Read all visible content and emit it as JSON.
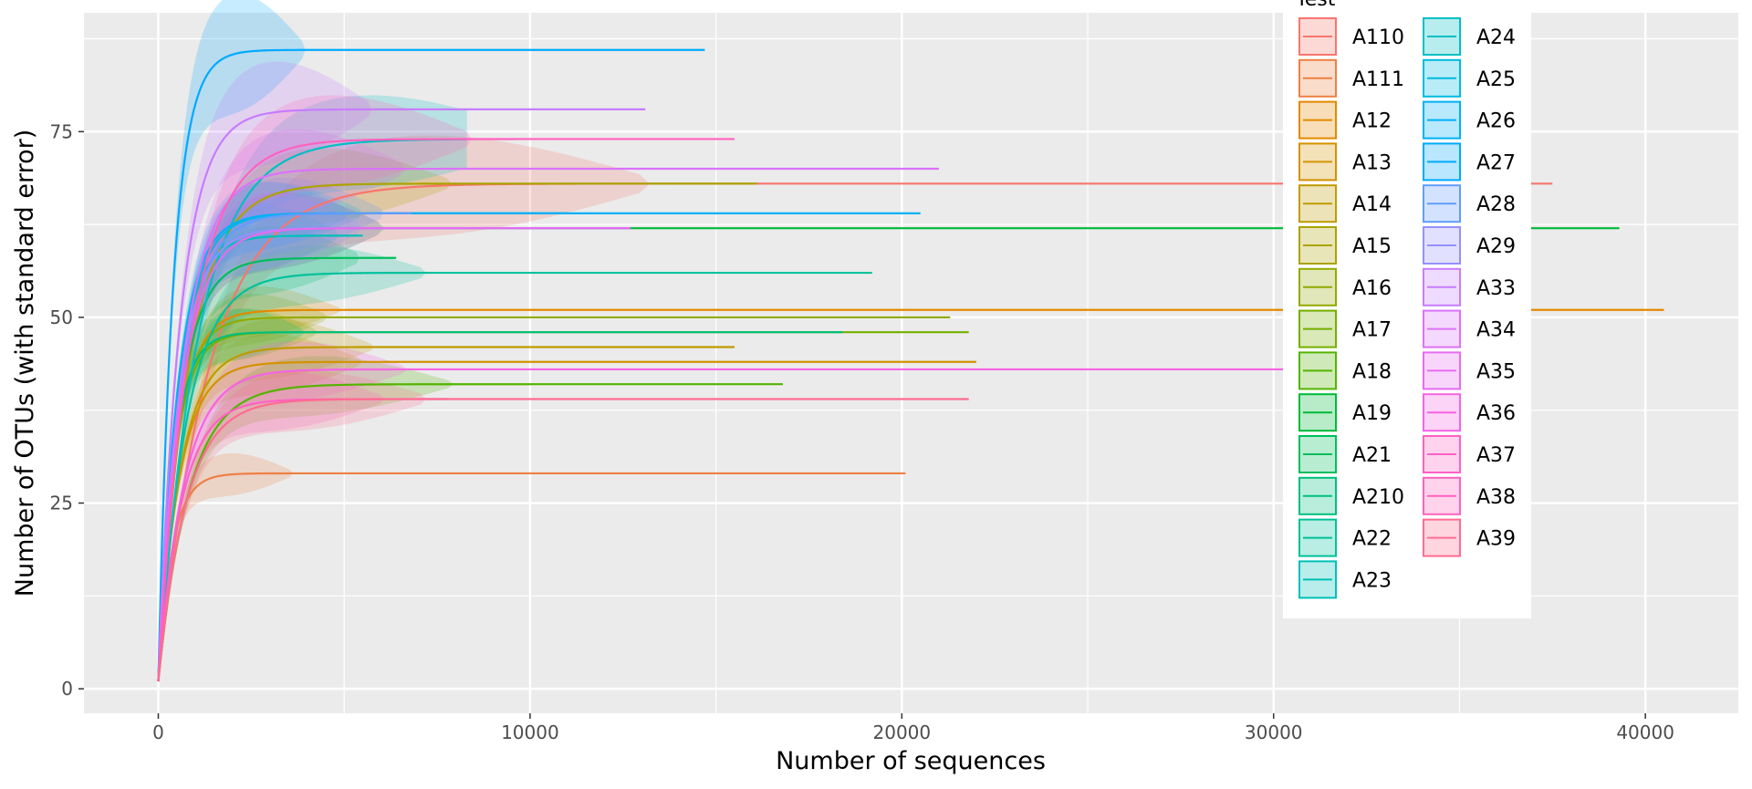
{
  "chart_data": {
    "type": "line",
    "xlabel": "Number of sequences",
    "ylabel": "Number of OTUs (with standard error)",
    "xlim": [
      -2000,
      42500
    ],
    "ylim": [
      -3.3,
      91
    ],
    "x_ticks": [
      0,
      10000,
      20000,
      30000,
      40000
    ],
    "x_tick_labels": [
      "0",
      "10000",
      "20000",
      "30000",
      "40000"
    ],
    "y_ticks": [
      0,
      25,
      50,
      75
    ],
    "y_tick_labels": [
      "0",
      "25",
      "50",
      "75"
    ],
    "grid": true,
    "legend_position": "top-right",
    "legend_title": "Test",
    "series": [
      {
        "name": "A110",
        "color": "#F8766D",
        "asymptote": 68,
        "k": 2200,
        "n_max": 37500,
        "se": 6
      },
      {
        "name": "A111",
        "color": "#EE8044",
        "asymptote": 29,
        "k": 600,
        "n_max": 20100,
        "se": 2.5
      },
      {
        "name": "A12",
        "color": "#E38900",
        "asymptote": 51,
        "k": 800,
        "n_max": 40500,
        "se": 3
      },
      {
        "name": "A13",
        "color": "#D39200",
        "asymptote": 44,
        "k": 900,
        "n_max": 22000,
        "se": 3.5
      },
      {
        "name": "A14",
        "color": "#C09B00",
        "asymptote": 46,
        "k": 950,
        "n_max": 15500,
        "se": 3.5
      },
      {
        "name": "A15",
        "color": "#ABA300",
        "asymptote": 68,
        "k": 1300,
        "n_max": 16100,
        "se": 4.5
      },
      {
        "name": "A16",
        "color": "#93AA00",
        "asymptote": 50,
        "k": 750,
        "n_max": 21300,
        "se": 3
      },
      {
        "name": "A17",
        "color": "#75AF00",
        "asymptote": 48,
        "k": 700,
        "n_max": 21800,
        "se": 3
      },
      {
        "name": "A18",
        "color": "#53B400",
        "asymptote": 41,
        "k": 1300,
        "n_max": 16800,
        "se": 3.5
      },
      {
        "name": "A19",
        "color": "#00BA38",
        "asymptote": 62,
        "k": 1000,
        "n_max": 39300,
        "se": 4.5
      },
      {
        "name": "A21",
        "color": "#00BD5C",
        "asymptote": 58,
        "k": 900,
        "n_max": 6400,
        "se": 4
      },
      {
        "name": "A210",
        "color": "#00BF7D",
        "asymptote": 48,
        "k": 650,
        "n_max": 18400,
        "se": 3
      },
      {
        "name": "A22",
        "color": "#00C19A",
        "asymptote": 56,
        "k": 1200,
        "n_max": 19200,
        "se": 3.5
      },
      {
        "name": "A23",
        "color": "#00C0B8",
        "asymptote": 61,
        "k": 800,
        "n_max": 5500,
        "se": 4
      },
      {
        "name": "A24",
        "color": "#00BFC4",
        "asymptote": 74,
        "k": 1700,
        "n_max": 8300,
        "se": 5.5
      },
      {
        "name": "A25",
        "color": "#00BAE0",
        "asymptote": 64,
        "k": 900,
        "n_max": 11000,
        "se": 4
      },
      {
        "name": "A26",
        "color": "#00B0F6",
        "asymptote": 64,
        "k": 850,
        "n_max": 20500,
        "se": 4
      },
      {
        "name": "A27",
        "color": "#00A9FF",
        "asymptote": 86,
        "k": 650,
        "n_max": 14700,
        "se": 7
      },
      {
        "name": "A28",
        "color": "#619CFF",
        "asymptote": 64,
        "k": 1000,
        "n_max": 6800,
        "se": 4.5
      },
      {
        "name": "A29",
        "color": "#9590FF",
        "asymptote": 62,
        "k": 900,
        "n_max": 12700,
        "se": 4.5
      },
      {
        "name": "A33",
        "color": "#C77CFF",
        "asymptote": 78,
        "k": 950,
        "n_max": 13100,
        "se": 6
      },
      {
        "name": "A34",
        "color": "#DB72FB",
        "asymptote": 70,
        "k": 1100,
        "n_max": 21000,
        "se": 5
      },
      {
        "name": "A35",
        "color": "#E76BF3",
        "asymptote": 62,
        "k": 1000,
        "n_max": 12700,
        "se": 4.5
      },
      {
        "name": "A36",
        "color": "#F564E3",
        "asymptote": 43,
        "k": 1100,
        "n_max": 30500,
        "se": 3.5
      },
      {
        "name": "A37",
        "color": "#FF61C3",
        "asymptote": 39,
        "k": 1000,
        "n_max": 7800,
        "se": 3.5
      },
      {
        "name": "A38",
        "color": "#FF62BC",
        "asymptote": 74,
        "k": 1400,
        "n_max": 15500,
        "se": 5.5
      },
      {
        "name": "A39",
        "color": "#FF6C91",
        "asymptote": 39,
        "k": 1200,
        "n_max": 21800,
        "se": 3.5
      }
    ]
  }
}
